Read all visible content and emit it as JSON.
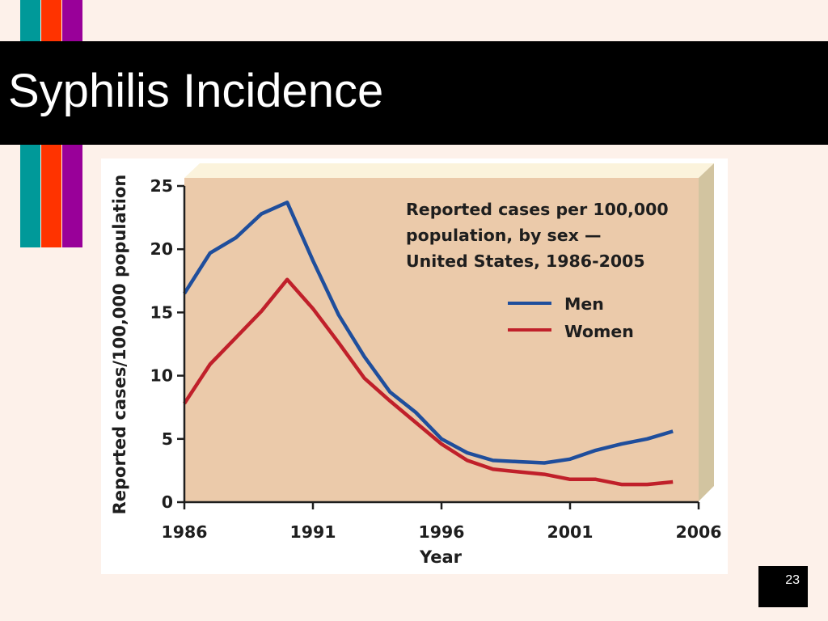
{
  "slide": {
    "title": "Syphilis Incidence",
    "page_number": "23",
    "stripe_colors": [
      "#009999",
      "#ff3300",
      "#990099"
    ]
  },
  "chart_data": {
    "type": "line",
    "title": "Reported cases per 100,000 population, by sex — United States, 1986-2005",
    "title_lines": [
      "Reported cases per 100,000",
      "population, by sex —",
      "United States, 1986-2005"
    ],
    "xlabel": "Year",
    "ylabel": "Reported cases/100,000 population",
    "xlim": [
      1986,
      2006
    ],
    "ylim": [
      0,
      25
    ],
    "xticks": [
      1986,
      1991,
      1996,
      2001,
      2006
    ],
    "yticks": [
      0,
      5,
      10,
      15,
      20,
      25
    ],
    "grid": false,
    "legend_position": "right, below title",
    "plot_background": "#ebcaaa",
    "x": [
      1986,
      1987,
      1988,
      1989,
      1990,
      1991,
      1992,
      1993,
      1994,
      1995,
      1996,
      1997,
      1998,
      1999,
      2000,
      2001,
      2002,
      2003,
      2004,
      2005
    ],
    "series": [
      {
        "name": "Men",
        "color": "#1f4e9c",
        "values": [
          16.5,
          19.7,
          20.9,
          22.8,
          23.7,
          19.1,
          14.8,
          11.5,
          8.7,
          7.1,
          5.0,
          3.9,
          3.3,
          3.2,
          3.1,
          3.4,
          4.1,
          4.6,
          5.0,
          5.6
        ]
      },
      {
        "name": "Women",
        "color": "#c0202a",
        "values": [
          7.8,
          10.9,
          13.0,
          15.1,
          17.6,
          15.3,
          12.6,
          9.8,
          8.0,
          6.3,
          4.6,
          3.3,
          2.6,
          2.4,
          2.2,
          1.8,
          1.8,
          1.4,
          1.4,
          1.6
        ]
      }
    ]
  }
}
